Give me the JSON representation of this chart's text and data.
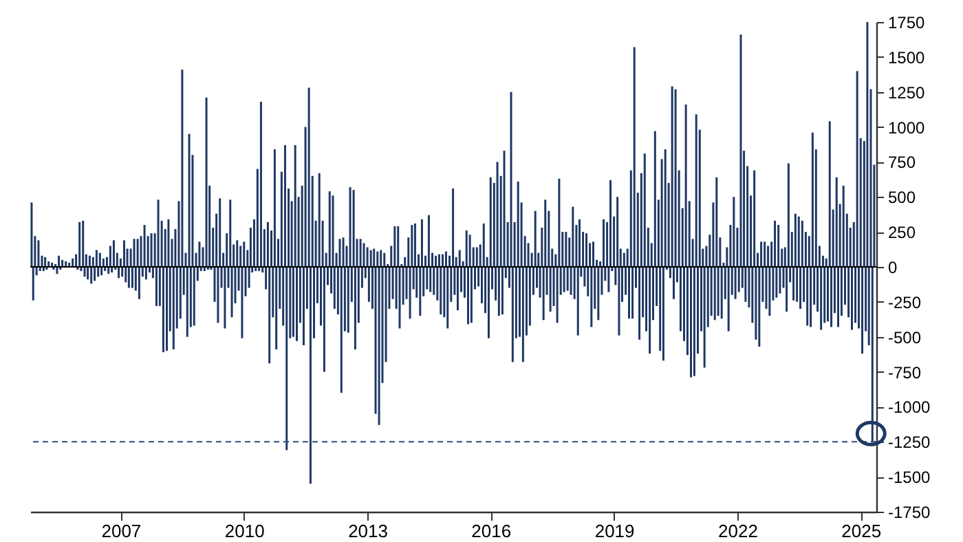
{
  "chart_data": {
    "type": "bar",
    "x": [
      "2004-11-01",
      "2004-11-15",
      "2004-12-01",
      "2004-12-15",
      "2005-01-01",
      "2005-01-15",
      "2005-02-01",
      "2005-02-15",
      "2005-03-01",
      "2005-03-15",
      "2005-04-01",
      "2005-04-15",
      "2005-05-01",
      "2005-05-15",
      "2005-06-01",
      "2005-06-15",
      "2005-07-01",
      "2005-07-15",
      "2005-08-01",
      "2005-08-15",
      "2005-09-01",
      "2005-09-15",
      "2005-10-01",
      "2005-10-15",
      "2005-11-01",
      "2005-11-15",
      "2005-12-01",
      "2005-12-15",
      "2006-01-01",
      "2006-01-15",
      "2006-02-01",
      "2006-02-15",
      "2006-03-01",
      "2006-03-15",
      "2006-04-01",
      "2006-04-15",
      "2006-05-01",
      "2006-05-15",
      "2006-06-01",
      "2006-06-15",
      "2006-07-01",
      "2006-07-15",
      "2006-08-01",
      "2006-08-15",
      "2006-09-01",
      "2006-09-15",
      "2006-10-01",
      "2006-10-15",
      "2006-11-01",
      "2006-11-15",
      "2006-12-01",
      "2006-12-15",
      "2007-01-01",
      "2007-01-15",
      "2007-02-01",
      "2007-02-15",
      "2007-03-01",
      "2007-03-15",
      "2007-04-01",
      "2007-04-15",
      "2007-05-01",
      "2007-05-15",
      "2007-06-01",
      "2007-06-15",
      "2007-07-01",
      "2007-07-15",
      "2007-08-01",
      "2007-08-15",
      "2007-09-01",
      "2007-09-15",
      "2007-10-01",
      "2007-10-15",
      "2007-11-01",
      "2007-11-15",
      "2007-12-01",
      "2007-12-15",
      "2008-01-01",
      "2008-01-15",
      "2008-02-01",
      "2008-02-15",
      "2008-03-01",
      "2008-03-15",
      "2008-04-01",
      "2008-04-15",
      "2008-05-01",
      "2008-05-15",
      "2008-06-01",
      "2008-06-15",
      "2008-07-01",
      "2008-07-15",
      "2008-08-01",
      "2008-08-15",
      "2008-09-01",
      "2008-09-15",
      "2008-10-01",
      "2008-10-15",
      "2008-11-01",
      "2008-11-15",
      "2008-12-01",
      "2008-12-15",
      "2009-01-01",
      "2009-01-15",
      "2009-02-01",
      "2009-02-15",
      "2009-03-01",
      "2009-03-15",
      "2009-04-01",
      "2009-04-15",
      "2009-05-01",
      "2009-05-15",
      "2009-06-01",
      "2009-06-15",
      "2009-07-01",
      "2009-07-15",
      "2009-08-01",
      "2009-08-15",
      "2009-09-01",
      "2009-09-15",
      "2009-10-01",
      "2009-10-15",
      "2009-11-01",
      "2009-11-15",
      "2009-12-01",
      "2009-12-15",
      "2010-01-01",
      "2010-01-15",
      "2010-02-01",
      "2010-02-15",
      "2010-03-01",
      "2010-03-15",
      "2010-04-01",
      "2010-04-15",
      "2010-05-01",
      "2010-05-15",
      "2010-06-01",
      "2010-06-15",
      "2010-07-01",
      "2010-07-15",
      "2010-08-01",
      "2010-08-15",
      "2010-09-01",
      "2010-09-15",
      "2010-10-01",
      "2010-10-15",
      "2010-11-01",
      "2010-11-15",
      "2010-12-01",
      "2010-12-15",
      "2011-01-01",
      "2011-01-15",
      "2011-02-01",
      "2011-02-15",
      "2011-03-01",
      "2011-03-15",
      "2011-04-01",
      "2011-04-15",
      "2011-05-01",
      "2011-05-15",
      "2011-06-01",
      "2011-06-15",
      "2011-07-01",
      "2011-07-15",
      "2011-08-01",
      "2011-08-15",
      "2011-09-01",
      "2011-09-15",
      "2011-10-01",
      "2011-10-15",
      "2011-11-01",
      "2011-11-15",
      "2011-12-01",
      "2011-12-15",
      "2012-01-01",
      "2012-01-15",
      "2012-02-01",
      "2012-02-15",
      "2012-03-01",
      "2012-03-15",
      "2012-04-01",
      "2012-04-15",
      "2012-05-01",
      "2012-05-15",
      "2012-06-01",
      "2012-06-15",
      "2012-07-01",
      "2012-07-15",
      "2012-08-01",
      "2012-08-15",
      "2012-09-01",
      "2012-09-15",
      "2012-10-01",
      "2012-10-15",
      "2012-11-01",
      "2012-11-15",
      "2012-12-01",
      "2012-12-15",
      "2013-01-01",
      "2013-01-15",
      "2013-02-01",
      "2013-02-15",
      "2013-03-01",
      "2013-03-15",
      "2013-04-01",
      "2013-04-15",
      "2013-05-01",
      "2013-05-15",
      "2013-06-01",
      "2013-06-15",
      "2013-07-01",
      "2013-07-15",
      "2013-08-01",
      "2013-08-15",
      "2013-09-01",
      "2013-09-15",
      "2013-10-01",
      "2013-10-15",
      "2013-11-01",
      "2013-11-15",
      "2013-12-01",
      "2013-12-15",
      "2014-01-01",
      "2014-01-15",
      "2014-02-01",
      "2014-02-15",
      "2014-03-01",
      "2014-03-15",
      "2014-04-01",
      "2014-04-15",
      "2014-05-01",
      "2014-05-15",
      "2014-06-01",
      "2014-06-15",
      "2014-07-01",
      "2014-07-15",
      "2014-08-01",
      "2014-08-15",
      "2014-09-01",
      "2014-09-15",
      "2014-10-01",
      "2014-10-15",
      "2014-11-01",
      "2014-11-15",
      "2014-12-01",
      "2014-12-15",
      "2015-01-01",
      "2015-01-15",
      "2015-02-01",
      "2015-02-15",
      "2015-03-01",
      "2015-03-15",
      "2015-04-01",
      "2015-04-15",
      "2015-05-01",
      "2015-05-15",
      "2015-06-01",
      "2015-06-15",
      "2015-07-01",
      "2015-07-15",
      "2015-08-01",
      "2015-08-15",
      "2015-09-01",
      "2015-09-15",
      "2015-10-01",
      "2015-10-15",
      "2015-11-01",
      "2015-11-15",
      "2015-12-01",
      "2015-12-15",
      "2016-01-01",
      "2016-01-15",
      "2016-02-01",
      "2016-02-15",
      "2016-03-01",
      "2016-03-15",
      "2016-04-01",
      "2016-04-15",
      "2016-05-01",
      "2016-05-15",
      "2016-06-01",
      "2016-06-15",
      "2016-07-01",
      "2016-07-15",
      "2016-08-01",
      "2016-08-15",
      "2016-09-01",
      "2016-09-15",
      "2016-10-01",
      "2016-10-15",
      "2016-11-01",
      "2016-11-15",
      "2016-12-01",
      "2016-12-15",
      "2017-01-01",
      "2017-01-15",
      "2017-02-01",
      "2017-02-15",
      "2017-03-01",
      "2017-03-15",
      "2017-04-01",
      "2017-04-15",
      "2017-05-01",
      "2017-05-15",
      "2017-06-01",
      "2017-06-15",
      "2017-07-01",
      "2017-07-15",
      "2017-08-01",
      "2017-08-15",
      "2017-09-01",
      "2017-09-15",
      "2017-10-01",
      "2017-10-15",
      "2017-11-01",
      "2017-11-15",
      "2017-12-01",
      "2017-12-15",
      "2018-01-01",
      "2018-01-15",
      "2018-02-01",
      "2018-02-15",
      "2018-03-01",
      "2018-03-15",
      "2018-04-01",
      "2018-04-15",
      "2018-05-01",
      "2018-05-15",
      "2018-06-01",
      "2018-06-15",
      "2018-07-01",
      "2018-07-15",
      "2018-08-01",
      "2018-08-15",
      "2018-09-01",
      "2018-09-15",
      "2018-10-01",
      "2018-10-15",
      "2018-11-01",
      "2018-11-15",
      "2018-12-01",
      "2018-12-15",
      "2019-01-01",
      "2019-01-15",
      "2019-02-01",
      "2019-02-15",
      "2019-03-01",
      "2019-03-15",
      "2019-04-01",
      "2019-04-15",
      "2019-05-01",
      "2019-05-15",
      "2019-06-01",
      "2019-06-15",
      "2019-07-01",
      "2019-07-15",
      "2019-08-01",
      "2019-08-15",
      "2019-09-01",
      "2019-09-15",
      "2019-10-01",
      "2019-10-15",
      "2019-11-01",
      "2019-11-15",
      "2019-12-01",
      "2019-12-15",
      "2020-01-01",
      "2020-01-15",
      "2020-02-01",
      "2020-02-15",
      "2020-03-01",
      "2020-03-15",
      "2020-04-01",
      "2020-04-15",
      "2020-05-01",
      "2020-05-15",
      "2020-06-01",
      "2020-06-15",
      "2020-07-01",
      "2020-07-15",
      "2020-08-01",
      "2020-08-15",
      "2020-09-01",
      "2020-09-15",
      "2020-10-01",
      "2020-10-15",
      "2020-11-01",
      "2020-11-15",
      "2020-12-01",
      "2020-12-15",
      "2021-01-01",
      "2021-01-15",
      "2021-02-01",
      "2021-02-15",
      "2021-03-01",
      "2021-03-15",
      "2021-04-01",
      "2021-04-15",
      "2021-05-01",
      "2021-05-15",
      "2021-06-01",
      "2021-06-15",
      "2021-07-01",
      "2021-07-15",
      "2021-08-01",
      "2021-08-15",
      "2021-09-01",
      "2021-09-15",
      "2021-10-01",
      "2021-10-15",
      "2021-11-01",
      "2021-11-15",
      "2021-12-01",
      "2021-12-15",
      "2022-01-01",
      "2022-01-15",
      "2022-02-01",
      "2022-02-15",
      "2022-03-01",
      "2022-03-15",
      "2022-04-01",
      "2022-04-15",
      "2022-05-01",
      "2022-05-15",
      "2022-06-01",
      "2022-06-15",
      "2022-07-01",
      "2022-07-15",
      "2022-08-01",
      "2022-08-15",
      "2022-09-01",
      "2022-09-15",
      "2022-10-01",
      "2022-10-15",
      "2022-11-01",
      "2022-11-15",
      "2022-12-01",
      "2022-12-15",
      "2023-01-01",
      "2023-01-15",
      "2023-02-01",
      "2023-02-15",
      "2023-03-01",
      "2023-03-15",
      "2023-04-01",
      "2023-04-15",
      "2023-05-01",
      "2023-05-15",
      "2023-06-01",
      "2023-06-15",
      "2023-07-01",
      "2023-07-15",
      "2023-08-01",
      "2023-08-15",
      "2023-09-01",
      "2023-09-15",
      "2023-10-01",
      "2023-10-15",
      "2023-11-01",
      "2023-11-15",
      "2023-12-01",
      "2023-12-15",
      "2024-01-01",
      "2024-01-15",
      "2024-02-01",
      "2024-02-15",
      "2024-03-01",
      "2024-03-15",
      "2024-04-01",
      "2024-04-15",
      "2024-05-01",
      "2024-05-15",
      "2024-06-01",
      "2024-06-15",
      "2024-07-01",
      "2024-07-15",
      "2024-08-01",
      "2024-08-15",
      "2024-09-01",
      "2024-09-15",
      "2024-10-01",
      "2024-10-15",
      "2024-11-01",
      "2024-11-15",
      "2024-12-01",
      "2024-12-15",
      "2025-01-01",
      "2025-01-15",
      "2025-02-01",
      "2025-02-15",
      "2025-03-01",
      "2025-03-15",
      "2025-04-01",
      "2025-04-15",
      "2025-05-01"
    ],
    "values": [
      460,
      -240,
      220,
      -60,
      190,
      -30,
      80,
      -30,
      70,
      -20,
      40,
      null,
      30,
      -20,
      20,
      -50,
      80,
      -20,
      50,
      null,
      40,
      null,
      30,
      null,
      60,
      null,
      90,
      -20,
      320,
      -30,
      330,
      -70,
      90,
      -90,
      80,
      -120,
      70,
      -100,
      120,
      -70,
      100,
      -60,
      60,
      -30,
      70,
      -50,
      150,
      -40,
      190,
      -20,
      100,
      -80,
      60,
      -70,
      190,
      -110,
      130,
      -150,
      130,
      -150,
      200,
      -170,
      200,
      -230,
      220,
      -70,
      300,
      -90,
      220,
      -40,
      240,
      -80,
      240,
      -280,
      480,
      -280,
      330,
      -610,
      270,
      -600,
      340,
      -460,
      200,
      -590,
      270,
      -440,
      470,
      -370,
      1410,
      -200,
      100,
      -500,
      950,
      -430,
      800,
      -420,
      100,
      -100,
      180,
      -30,
      140,
      -30,
      1210,
      -20,
      580,
      -20,
      280,
      -250,
      380,
      -400,
      490,
      -150,
      100,
      -440,
      240,
      -150,
      480,
      -360,
      160,
      -260,
      190,
      -170,
      150,
      -510,
      180,
      -210,
      120,
      -150,
      280,
      -40,
      340,
      -30,
      700,
      -30,
      1180,
      -40,
      270,
      -160,
      320,
      -690,
      260,
      -360,
      840,
      -590,
      200,
      -300,
      680,
      -420,
      870,
      -1310,
      560,
      -510,
      470,
      -500,
      870,
      -530,
      500,
      -400,
      580,
      -560,
      1000,
      -300,
      1280,
      -1550,
      650,
      -510,
      330,
      -260,
      670,
      -420,
      330,
      -750,
      100,
      -130,
      540,
      -190,
      510,
      -300,
      100,
      -340,
      200,
      -900,
      210,
      -460,
      150,
      -470,
      570,
      -250,
      550,
      -590,
      200,
      -400,
      200,
      -150,
      170,
      -80,
      140,
      -250,
      120,
      -300,
      130,
      -1050,
      110,
      -1130,
      120,
      -830,
      100,
      -680,
      20,
      -300,
      150,
      -230,
      290,
      -300,
      290,
      -440,
      20,
      -270,
      70,
      -230,
      210,
      -370,
      300,
      -160,
      310,
      -220,
      90,
      -350,
      340,
      -210,
      80,
      -160,
      370,
      -180,
      100,
      -200,
      80,
      -240,
      90,
      -340,
      90,
      -360,
      110,
      -440,
      80,
      -250,
      560,
      -200,
      70,
      -310,
      120,
      -180,
      40,
      -220,
      260,
      -410,
      230,
      -400,
      140,
      -160,
      140,
      -140,
      160,
      -260,
      310,
      -330,
      70,
      -510,
      640,
      -160,
      600,
      -240,
      750,
      -350,
      650,
      -340,
      830,
      -80,
      320,
      -150,
      1250,
      -680,
      320,
      -510,
      610,
      -500,
      460,
      -680,
      220,
      -490,
      170,
      -420,
      100,
      -200,
      400,
      -150,
      100,
      -220,
      280,
      -380,
      480,
      -200,
      400,
      -320,
      130,
      -280,
      90,
      -400,
      630,
      -200,
      250,
      -180,
      250,
      -170,
      210,
      -200,
      430,
      -230,
      300,
      -490,
      340,
      -70,
      250,
      -140,
      240,
      -210,
      170,
      -430,
      180,
      -300,
      50,
      -380,
      40,
      -200,
      340,
      -100,
      320,
      -180,
      620,
      -30,
      360,
      -130,
      500,
      -490,
      130,
      -250,
      100,
      -200,
      130,
      -370,
      690,
      -370,
      1570,
      -150,
      530,
      -520,
      670,
      -360,
      810,
      -460,
      280,
      -620,
      170,
      -380,
      970,
      -280,
      480,
      -600,
      770,
      -670,
      840,
      -20,
      600,
      -80,
      1290,
      -230,
      1270,
      -110,
      690,
      -460,
      420,
      -530,
      1160,
      -630,
      470,
      -790,
      200,
      -780,
      1090,
      -620,
      980,
      -460,
      130,
      -720,
      150,
      -430,
      230,
      -350,
      460,
      -380,
      640,
      -350,
      210,
      -370,
      30,
      -230,
      140,
      -460,
      300,
      -200,
      500,
      -230,
      280,
      -180,
      1660,
      -150,
      830,
      -250,
      720,
      -290,
      510,
      -400,
      690,
      -520,
      100,
      -570,
      180,
      -250,
      180,
      -300,
      150,
      -350,
      180,
      -240,
      330,
      -220,
      300,
      -190,
      130,
      -150,
      140,
      -320,
      740,
      -110,
      250,
      -240,
      380,
      -250,
      360,
      -300,
      330,
      -250,
      250,
      -420,
      220,
      -430,
      960,
      -270,
      840,
      -320,
      150,
      -450,
      80,
      -400,
      60,
      -390,
      1040,
      -430,
      410,
      -330,
      640,
      -430,
      450,
      -350,
      580,
      -270,
      380,
      -360,
      280,
      -450,
      320,
      -400,
      1400,
      -440,
      920,
      -620,
      900,
      -460,
      1750,
      -560,
      1270,
      -1250,
      730
    ],
    "color": "#1f3864",
    "xlim": [
      "2004-10-20",
      "2025-05-20"
    ],
    "xticks": [
      "2007",
      "2010",
      "2013",
      "2016",
      "2019",
      "2022",
      "2025"
    ],
    "ylim": [
      -1750,
      1750
    ],
    "yticks": [
      -1750,
      -1500,
      -1250,
      -1000,
      -750,
      -500,
      -250,
      0,
      250,
      500,
      750,
      1000,
      1250,
      1500,
      1750
    ],
    "ref_lines": [
      {
        "axis": "y",
        "value": 0,
        "color": "#000000",
        "line_style": "solid"
      },
      {
        "axis": "y",
        "value": -1250,
        "color": "#2e4a7f",
        "line_style": "dashed"
      }
    ],
    "grid": false
  }
}
